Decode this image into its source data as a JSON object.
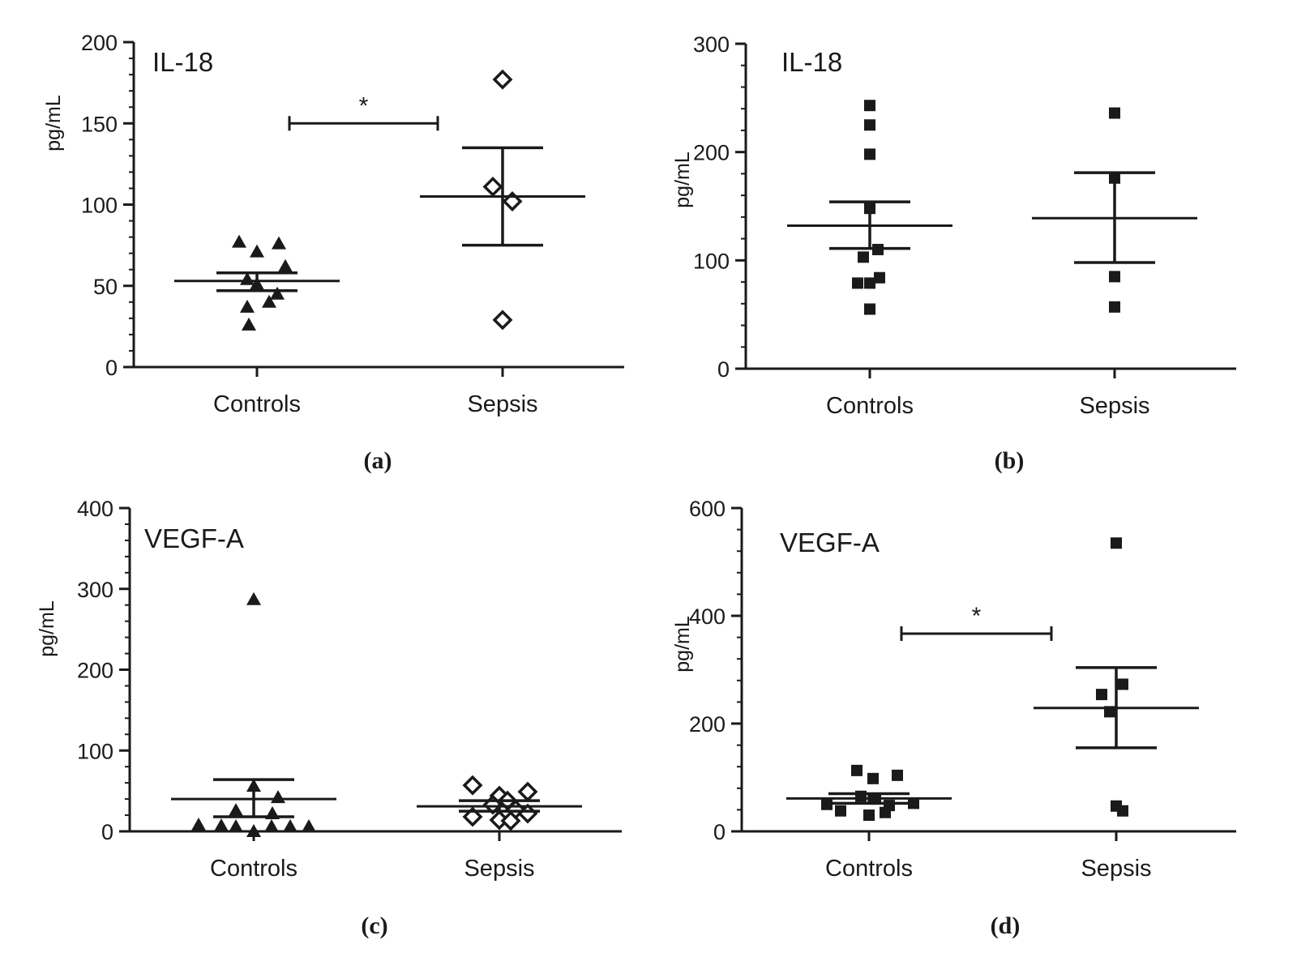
{
  "panels": [
    {
      "label": "(a)",
      "title": "IL-18",
      "ylabel": "pg/mL",
      "ylim": [
        0,
        200
      ],
      "yticks": [
        "0",
        "50",
        "100",
        "150",
        "200"
      ],
      "categories": [
        "Controls",
        "Sepsis"
      ],
      "significance": "*",
      "chart_data": {
        "type": "scatter",
        "categories": [
          "Controls",
          "Sepsis"
        ],
        "ylim": [
          0,
          200
        ],
        "y_minor_step": 10,
        "series": [
          {
            "category": "Controls",
            "marker": "triangle",
            "values": [
              77,
              76,
              71,
              62,
              54,
              51,
              45,
              40,
              37,
              26
            ],
            "mean": 53,
            "sem_upper": 58,
            "sem_lower": 47
          },
          {
            "category": "Sepsis",
            "marker": "diamond",
            "values": [
              177,
              111,
              102,
              29
            ],
            "mean": 105,
            "sem_upper": 135,
            "sem_lower": 75
          }
        ],
        "comparison": {
          "from": "Controls",
          "to": "Sepsis",
          "y": 150,
          "label": "*"
        }
      }
    },
    {
      "label": "(b)",
      "title": "IL-18",
      "ylabel": "pg/mL",
      "ylim": [
        0,
        300
      ],
      "yticks": [
        "0",
        "100",
        "200",
        "300"
      ],
      "categories": [
        "Controls",
        "Sepsis"
      ],
      "significance": "",
      "chart_data": {
        "type": "scatter",
        "categories": [
          "Controls",
          "Sepsis"
        ],
        "ylim": [
          0,
          300
        ],
        "y_minor_step": 20,
        "series": [
          {
            "category": "Controls",
            "marker": "square",
            "values": [
              243,
              225,
              198,
              148,
              110,
              103,
              84,
              79,
              79,
              55
            ],
            "mean": 132,
            "sem_upper": 154,
            "sem_lower": 111
          },
          {
            "category": "Sepsis",
            "marker": "square",
            "values": [
              236,
              176,
              85,
              57
            ],
            "mean": 139,
            "sem_upper": 181,
            "sem_lower": 98
          }
        ]
      }
    },
    {
      "label": "(c)",
      "title": "VEGF-A",
      "ylabel": "pg/mL",
      "ylim": [
        0,
        400
      ],
      "yticks": [
        "0",
        "100",
        "200",
        "300",
        "400"
      ],
      "categories": [
        "Controls",
        "Sepsis"
      ],
      "significance": "",
      "chart_data": {
        "type": "scatter",
        "categories": [
          "Controls",
          "Sepsis"
        ],
        "ylim": [
          0,
          400
        ],
        "y_minor_step": 20,
        "series": [
          {
            "category": "Controls",
            "marker": "triangle",
            "values": [
              287,
              56,
              42,
              26,
              22,
              8,
              7,
              6,
              6,
              6,
              6,
              0
            ],
            "mean": 40,
            "sem_upper": 64,
            "sem_lower": 18
          },
          {
            "category": "Sepsis",
            "marker": "diamond",
            "values": [
              57,
              49,
              44,
              38,
              33,
              27,
              22,
              18,
              14,
              13
            ],
            "mean": 31,
            "sem_upper": 38,
            "sem_lower": 25
          }
        ]
      }
    },
    {
      "label": "(d)",
      "title": "VEGF-A",
      "ylabel": "pg/mL",
      "ylim": [
        0,
        600
      ],
      "yticks": [
        "0",
        "200",
        "400",
        "600"
      ],
      "categories": [
        "Controls",
        "Sepsis"
      ],
      "significance": "*",
      "chart_data": {
        "type": "scatter",
        "categories": [
          "Controls",
          "Sepsis"
        ],
        "ylim": [
          0,
          600
        ],
        "y_minor_step": 40,
        "series": [
          {
            "category": "Controls",
            "marker": "square",
            "values": [
              113,
              104,
              98,
              65,
              60,
              52,
              50,
              48,
              38,
              35,
              30
            ],
            "mean": 61,
            "sem_upper": 70,
            "sem_lower": 52
          },
          {
            "category": "Sepsis",
            "marker": "square",
            "values": [
              535,
              273,
              254,
              222,
              47,
              38
            ],
            "mean": 229,
            "sem_upper": 304,
            "sem_lower": 155
          }
        ],
        "comparison": {
          "from": "Controls",
          "to": "Sepsis",
          "y": 367,
          "label": "*"
        }
      }
    }
  ]
}
